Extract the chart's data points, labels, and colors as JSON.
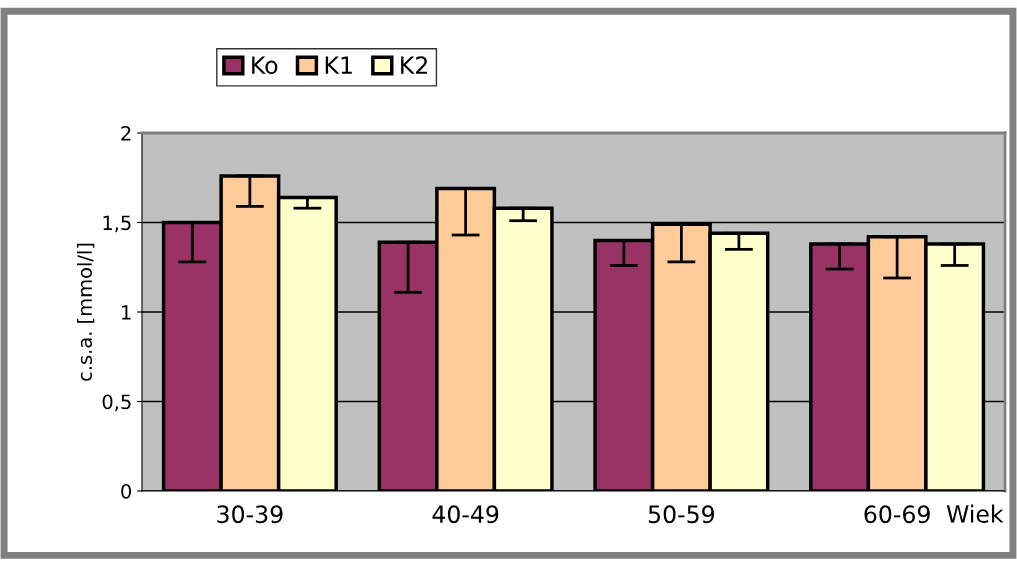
{
  "chart_data": {
    "type": "bar",
    "categories": [
      "30-39",
      "40-49",
      "50-59",
      "60-69"
    ],
    "xlabel": "Wiek",
    "ylabel": "c.s.a. [mmol/l]",
    "series": [
      {
        "name": "Ko",
        "color": "#993366",
        "values": [
          1.5,
          1.39,
          1.4,
          1.38
        ],
        "errors": [
          [
            1.28,
            1.5
          ],
          [
            1.11,
            1.39
          ],
          [
            1.26,
            1.4
          ],
          [
            1.24,
            1.38
          ]
        ]
      },
      {
        "name": "K1",
        "color": "#ffcc99",
        "values": [
          1.76,
          1.69,
          1.49,
          1.42
        ],
        "errors": [
          [
            1.59,
            1.76
          ],
          [
            1.43,
            1.69
          ],
          [
            1.28,
            1.49
          ],
          [
            1.19,
            1.42
          ]
        ]
      },
      {
        "name": "K2",
        "color": "#ffffcc",
        "values": [
          1.64,
          1.58,
          1.44,
          1.38
        ],
        "errors": [
          [
            1.58,
            1.64
          ],
          [
            1.51,
            1.58
          ],
          [
            1.35,
            1.44
          ],
          [
            1.26,
            1.38
          ]
        ]
      }
    ],
    "ylim": [
      0,
      2
    ],
    "yticks": [
      {
        "value": 0,
        "label": "0"
      },
      {
        "value": 0.5,
        "label": "0,5"
      },
      {
        "value": 1,
        "label": "1"
      },
      {
        "value": 1.5,
        "label": "1,5"
      },
      {
        "value": 2,
        "label": "2"
      }
    ],
    "grid": "y",
    "legend": "top left"
  }
}
